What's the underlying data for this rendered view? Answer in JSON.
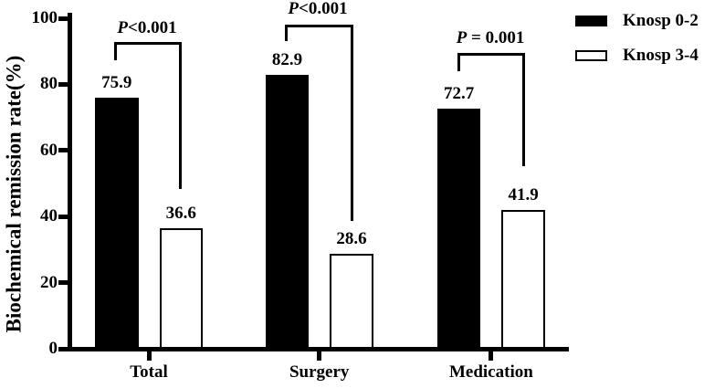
{
  "chart_data": {
    "type": "bar",
    "title": "",
    "ylabel": "Biochemical remission rate(%)",
    "xlabel": "",
    "ylim": [
      0,
      100
    ],
    "yticks": [
      0,
      20,
      40,
      60,
      80,
      100
    ],
    "categories": [
      "Total",
      "Surgery",
      "Medication"
    ],
    "series": [
      {
        "name": "Knosp 0-2",
        "fill": "#000000",
        "values": [
          75.9,
          82.9,
          72.7
        ]
      },
      {
        "name": "Knosp 3-4",
        "fill": "#ffffff",
        "values": [
          36.6,
          28.6,
          41.9
        ]
      }
    ],
    "value_labels": {
      "knosp_0_2": [
        "75.9",
        "82.9",
        "72.7"
      ],
      "knosp_3_4": [
        "36.6",
        "28.6",
        "41.9"
      ]
    },
    "significance": [
      {
        "prefix": "P",
        "rest": "<0.001"
      },
      {
        "prefix": "P",
        "rest": "<0.001"
      },
      {
        "prefix": "P",
        "rest": " = 0.001"
      }
    ],
    "legend_position": "top-right",
    "grid": false,
    "axis_color": "#000000",
    "text_color": "#000000",
    "background": "#ffffff"
  }
}
